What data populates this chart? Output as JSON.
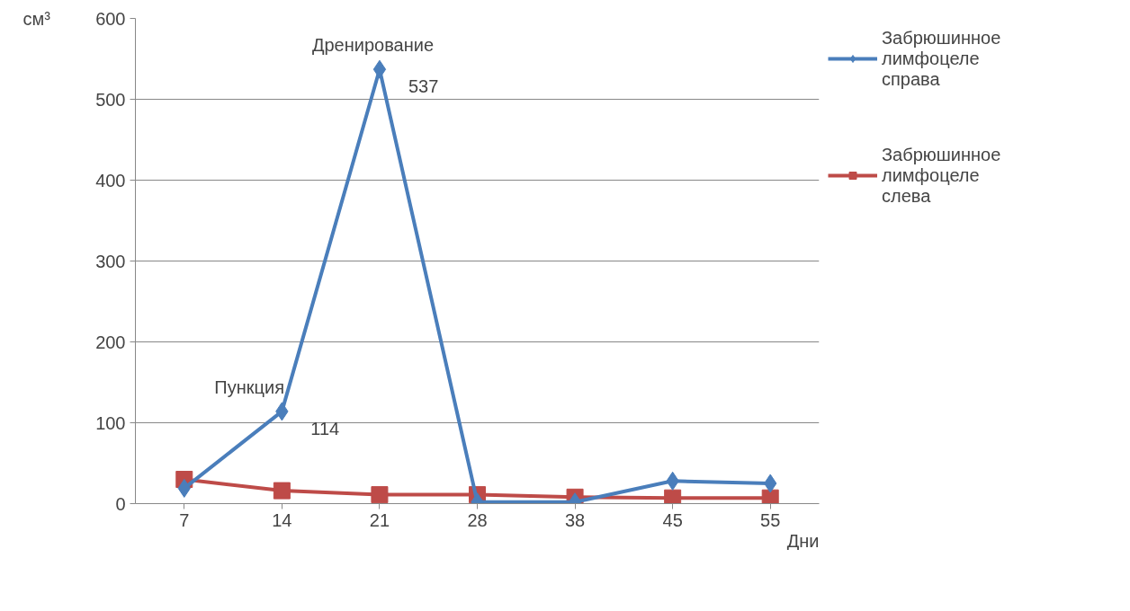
{
  "chart_data": {
    "type": "line",
    "ylabel": "см³",
    "xlabel": "Дни",
    "categories": [
      "7",
      "14",
      "21",
      "28",
      "38",
      "45",
      "55"
    ],
    "series": [
      {
        "name": "Забрюшинное лимфоцеле справа",
        "color": "#4a7ebb",
        "marker": "diamond",
        "values": [
          19,
          114,
          537,
          2,
          2,
          28,
          25
        ],
        "value_labels": [
          null,
          "114",
          "537",
          null,
          null,
          null,
          null
        ]
      },
      {
        "name": "Забрюшинное лимфоцеле слева",
        "color": "#be4b48",
        "marker": "square",
        "values": [
          30,
          16,
          11,
          11,
          8,
          7,
          7
        ]
      }
    ],
    "annotations": [
      {
        "text": "Пункция",
        "x": "14",
        "y": 114
      },
      {
        "text": "Дренирование",
        "x": "21",
        "y": 537
      }
    ],
    "ylim": [
      0,
      600
    ],
    "yticks": [
      0,
      100,
      200,
      300,
      400,
      500,
      600
    ],
    "grid": "y",
    "legend": "right"
  }
}
